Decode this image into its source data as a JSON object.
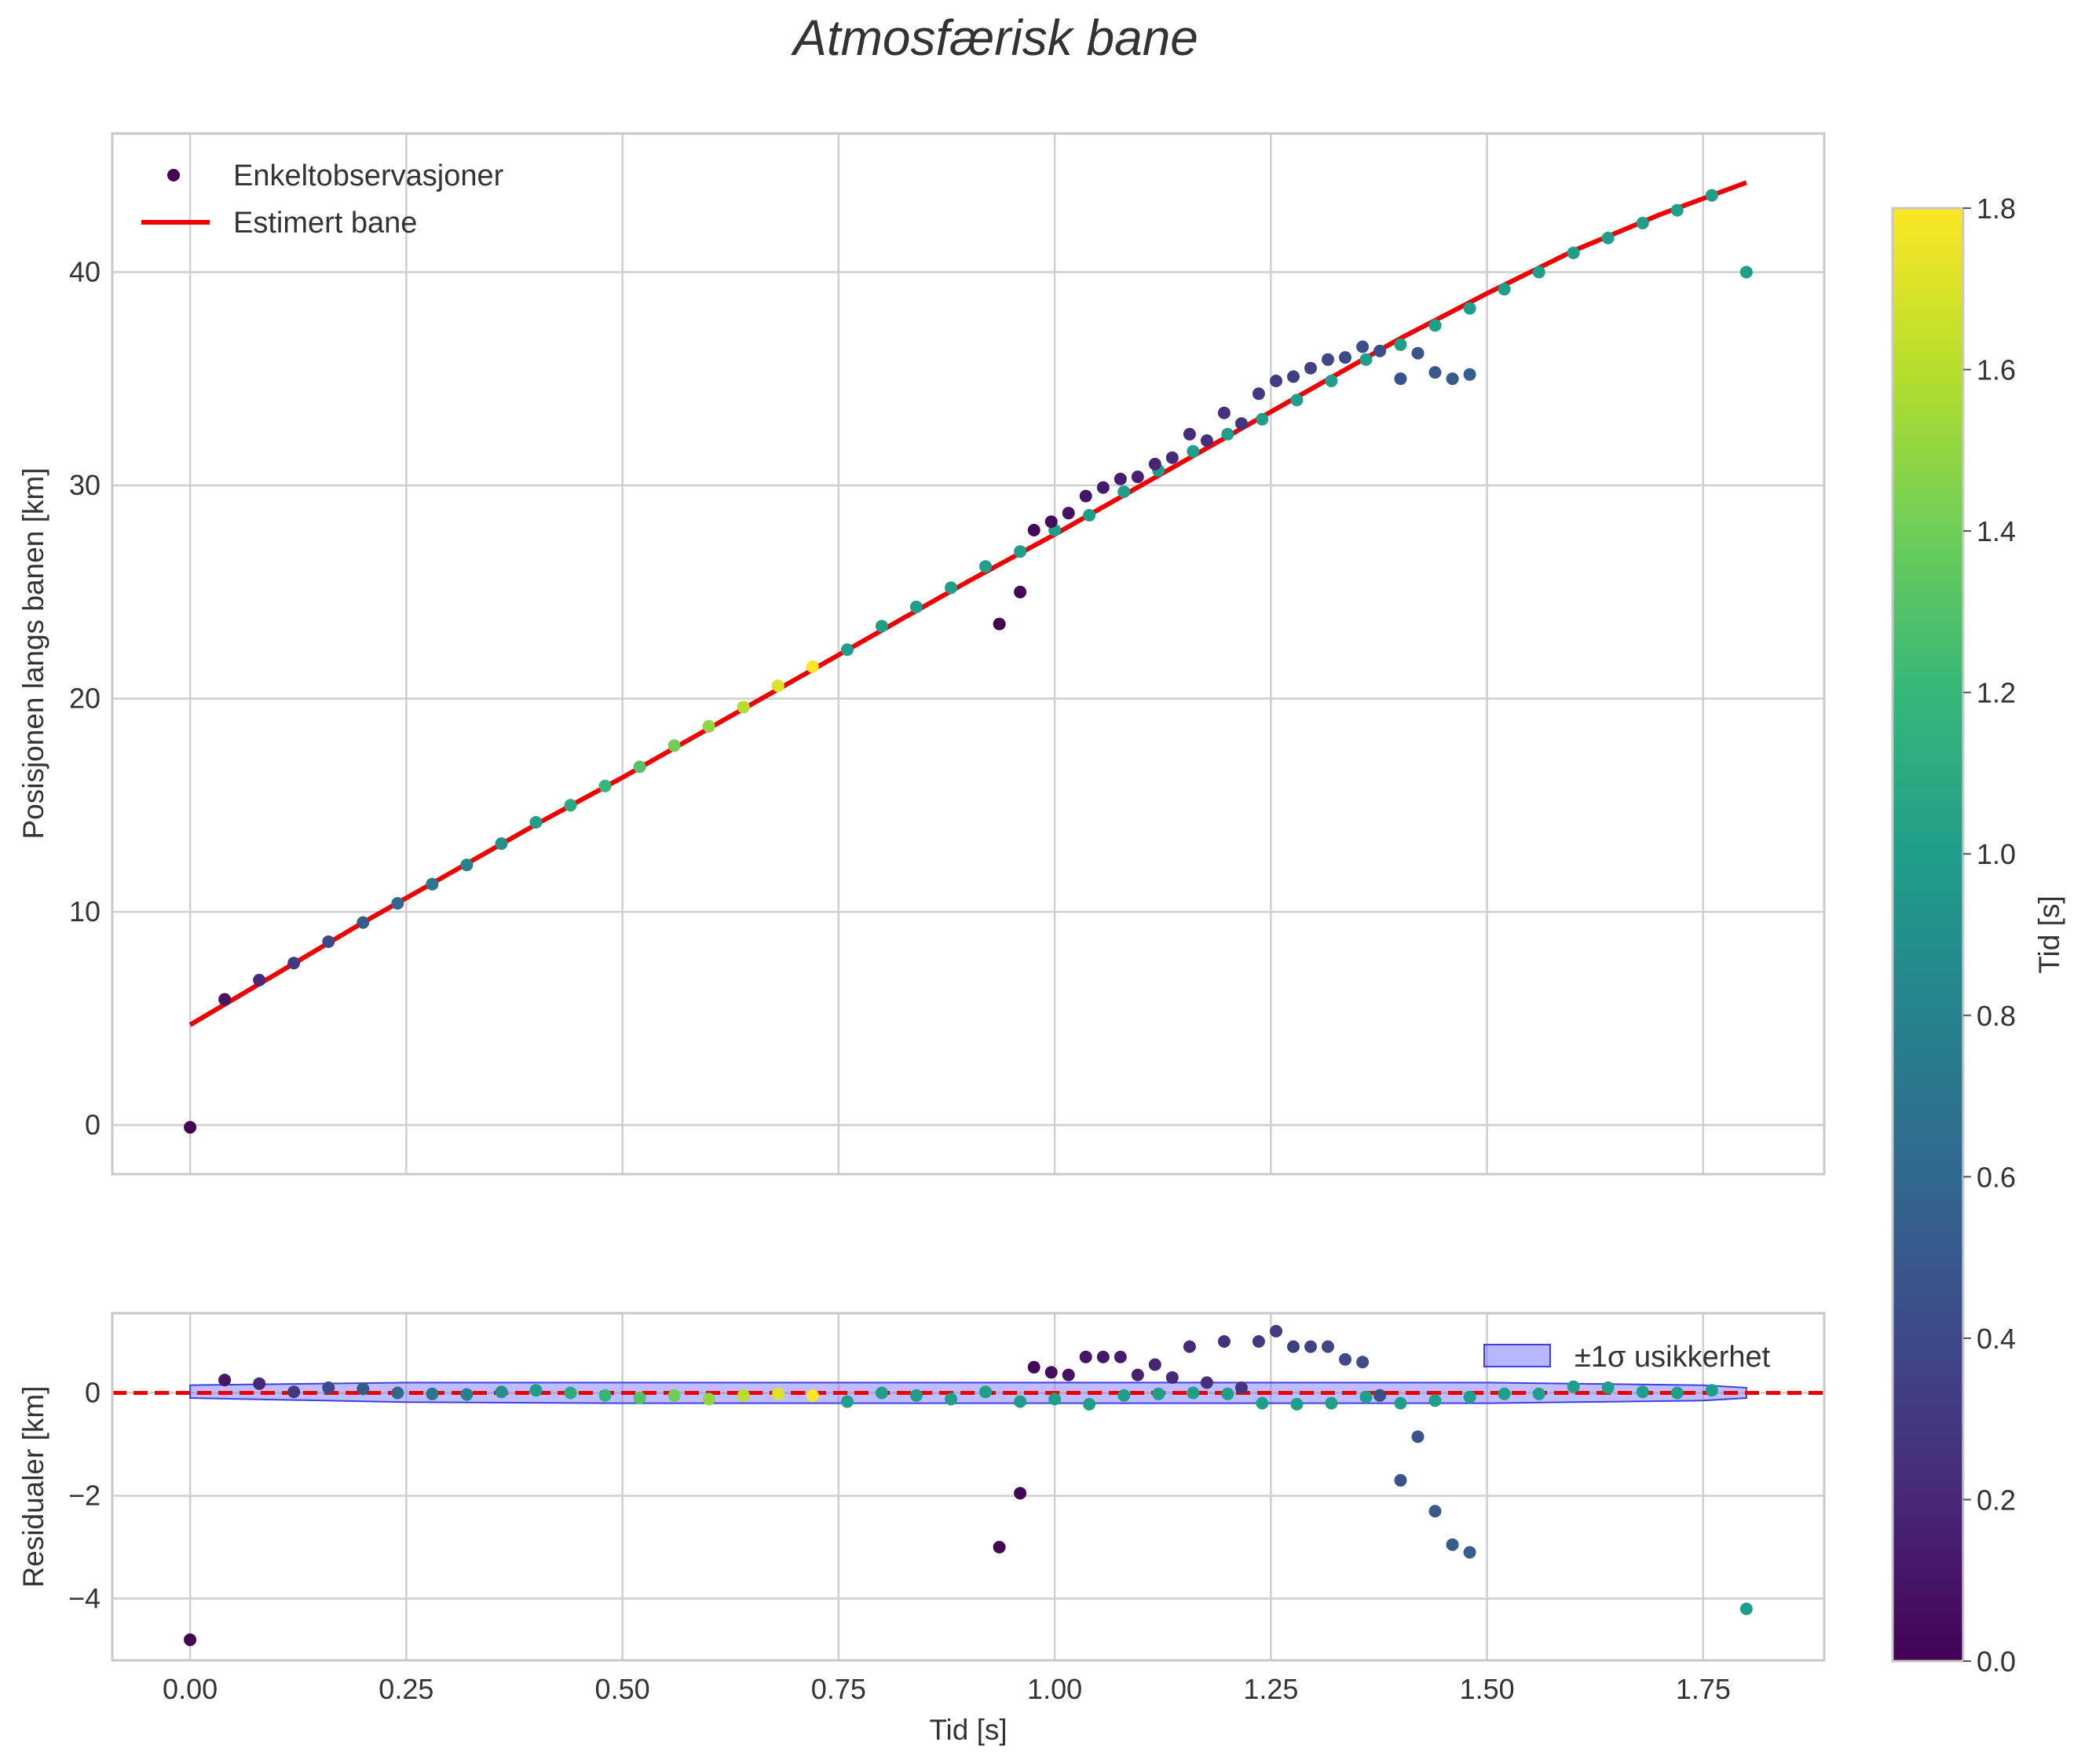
{
  "chart_data": {
    "title": "Atmosfærisk bane",
    "colorbar": {
      "label": "Tid [s]",
      "range": [
        0.0,
        1.8
      ],
      "ticks": [
        "0.0",
        "0.2",
        "0.4",
        "0.6",
        "0.8",
        "1.0",
        "1.2",
        "1.4",
        "1.6",
        "1.8"
      ],
      "tick_values": [
        0,
        0.2,
        0.4,
        0.6,
        0.8,
        1.0,
        1.2,
        1.4,
        1.6,
        1.8
      ],
      "colormap": "viridis"
    },
    "colors": {
      "fit_line": "#ee0000",
      "band_fill": "#7b7bff",
      "band_edge": "#4040e0"
    },
    "charts": [
      {
        "type": "scatter",
        "ylabel": "Posisjonen langs banen [km]",
        "xlabel": "",
        "xlim": [
          -0.09,
          1.89
        ],
        "ylim": [
          -2.3,
          46.5
        ],
        "yticks": [
          0,
          10,
          20,
          30,
          40
        ],
        "ytick_labels": [
          "0",
          "10",
          "20",
          "30",
          "40"
        ],
        "legend": {
          "placement": "top-left",
          "entries": [
            "Enkeltobservasjoner",
            "Estimert bane"
          ]
        },
        "series": [
          {
            "name": "Enkeltobservasjoner",
            "points": [
              [
                0.0,
                -0.1,
                0.0
              ],
              [
                0.04,
                5.9,
                0.1
              ],
              [
                0.08,
                6.8,
                0.2
              ],
              [
                0.12,
                7.6,
                0.3
              ],
              [
                0.16,
                8.6,
                0.4
              ],
              [
                0.2,
                9.5,
                0.5
              ],
              [
                0.24,
                10.4,
                0.6
              ],
              [
                0.28,
                11.3,
                0.7
              ],
              [
                0.32,
                12.2,
                0.8
              ],
              [
                0.36,
                13.2,
                0.9
              ],
              [
                0.4,
                14.2,
                1.0
              ],
              [
                0.44,
                15.0,
                1.1
              ],
              [
                0.48,
                15.9,
                1.2
              ],
              [
                0.52,
                16.8,
                1.3
              ],
              [
                0.56,
                17.8,
                1.4
              ],
              [
                0.6,
                18.7,
                1.5
              ],
              [
                0.64,
                19.6,
                1.6
              ],
              [
                0.68,
                20.6,
                1.7
              ],
              [
                0.72,
                21.5,
                1.8
              ],
              [
                0.76,
                22.3,
                1.0
              ],
              [
                0.8,
                23.4,
                1.0
              ],
              [
                0.84,
                24.3,
                1.0
              ],
              [
                0.88,
                25.2,
                1.0
              ],
              [
                0.92,
                26.2,
                1.0
              ],
              [
                0.96,
                26.9,
                1.0
              ],
              [
                1.0,
                27.9,
                1.0
              ],
              [
                1.04,
                28.6,
                1.0
              ],
              [
                1.08,
                29.7,
                1.0
              ],
              [
                1.12,
                30.7,
                1.0
              ],
              [
                1.16,
                31.6,
                1.0
              ],
              [
                1.2,
                32.4,
                1.0
              ],
              [
                1.24,
                33.1,
                1.0
              ],
              [
                1.28,
                34.0,
                1.0
              ],
              [
                1.32,
                34.9,
                1.0
              ],
              [
                1.36,
                35.9,
                1.0
              ],
              [
                1.4,
                36.6,
                1.0
              ],
              [
                1.44,
                37.5,
                1.0
              ],
              [
                1.48,
                38.3,
                1.0
              ],
              [
                1.52,
                39.2,
                1.0
              ],
              [
                1.56,
                40.0,
                1.0
              ],
              [
                1.6,
                40.9,
                1.0
              ],
              [
                1.64,
                41.6,
                1.0
              ],
              [
                1.68,
                42.3,
                1.0
              ],
              [
                1.72,
                42.9,
                1.0
              ],
              [
                1.76,
                43.6,
                1.0
              ],
              [
                1.8,
                40.0,
                1.0
              ],
              [
                0.936,
                23.5,
                0.0
              ],
              [
                0.96,
                25.0,
                0.02
              ],
              [
                0.976,
                27.9,
                0.04
              ],
              [
                0.996,
                28.3,
                0.06
              ],
              [
                1.016,
                28.7,
                0.08
              ],
              [
                1.036,
                29.5,
                0.1
              ],
              [
                1.056,
                29.9,
                0.12
              ],
              [
                1.076,
                30.3,
                0.14
              ],
              [
                1.096,
                30.4,
                0.16
              ],
              [
                1.116,
                31.0,
                0.18
              ],
              [
                1.136,
                31.3,
                0.2
              ],
              [
                1.156,
                32.4,
                0.22
              ],
              [
                1.176,
                32.1,
                0.24
              ],
              [
                1.196,
                33.4,
                0.26
              ],
              [
                1.216,
                32.9,
                0.28
              ],
              [
                1.236,
                34.3,
                0.3
              ],
              [
                1.256,
                34.9,
                0.32
              ],
              [
                1.276,
                35.1,
                0.34
              ],
              [
                1.296,
                35.5,
                0.36
              ],
              [
                1.316,
                35.9,
                0.38
              ],
              [
                1.336,
                36.0,
                0.4
              ],
              [
                1.356,
                36.5,
                0.42
              ],
              [
                1.376,
                36.3,
                0.44
              ],
              [
                1.4,
                35.0,
                0.46
              ],
              [
                1.42,
                36.2,
                0.48
              ],
              [
                1.44,
                35.3,
                0.5
              ],
              [
                1.46,
                35.0,
                0.52
              ],
              [
                1.48,
                35.2,
                0.54
              ]
            ]
          },
          {
            "name": "Estimert bane",
            "type": "line",
            "x": [
              0.0,
              0.1,
              0.2,
              0.3,
              0.4,
              0.5,
              0.6,
              0.7,
              0.8,
              0.9,
              1.0,
              1.1,
              1.2,
              1.3,
              1.4,
              1.5,
              1.6,
              1.7,
              1.8
            ],
            "y": [
              4.7,
              7.1,
              9.5,
              11.8,
              14.1,
              16.3,
              18.6,
              20.9,
              23.2,
              25.5,
              27.7,
              30.0,
              32.3,
              34.6,
              36.9,
              39.0,
              41.0,
              42.7,
              44.2
            ]
          }
        ]
      },
      {
        "type": "scatter",
        "ylabel": "Residualer [km]",
        "xlabel": "Tid [s]",
        "xlim": [
          -0.09,
          1.89
        ],
        "ylim": [
          -5.2,
          1.55
        ],
        "xticks": [
          0.0,
          0.25,
          0.5,
          0.75,
          1.0,
          1.25,
          1.5,
          1.75
        ],
        "xtick_labels": [
          "0.00",
          "0.25",
          "0.50",
          "0.75",
          "1.00",
          "1.25",
          "1.50",
          "1.75"
        ],
        "yticks": [
          -4,
          -2,
          0
        ],
        "ytick_labels": [
          "−4",
          "−2",
          "0"
        ],
        "reference_line": 0,
        "legend": {
          "placement": "top-right",
          "entries": [
            "±1σ usikkerhet"
          ]
        },
        "band": {
          "name": "±1σ usikkerhet",
          "x": [
            0.0,
            0.25,
            0.5,
            0.75,
            1.0,
            1.25,
            1.5,
            1.75,
            1.8
          ],
          "lower": [
            -0.1,
            -0.18,
            -0.2,
            -0.2,
            -0.2,
            -0.2,
            -0.2,
            -0.15,
            -0.1
          ],
          "upper": [
            0.15,
            0.2,
            0.2,
            0.2,
            0.2,
            0.2,
            0.2,
            0.15,
            0.1
          ]
        },
        "series": [
          {
            "name": "Residualer",
            "points": [
              [
                0.0,
                -4.8,
                0.0
              ],
              [
                0.04,
                0.25,
                0.1
              ],
              [
                0.08,
                0.18,
                0.2
              ],
              [
                0.12,
                0.02,
                0.3
              ],
              [
                0.16,
                0.1,
                0.4
              ],
              [
                0.2,
                0.08,
                0.5
              ],
              [
                0.24,
                0.0,
                0.6
              ],
              [
                0.28,
                -0.02,
                0.7
              ],
              [
                0.32,
                -0.03,
                0.8
              ],
              [
                0.36,
                0.02,
                0.9
              ],
              [
                0.4,
                0.05,
                1.0
              ],
              [
                0.44,
                0.0,
                1.1
              ],
              [
                0.48,
                -0.05,
                1.2
              ],
              [
                0.52,
                -0.1,
                1.3
              ],
              [
                0.56,
                -0.05,
                1.4
              ],
              [
                0.6,
                -0.12,
                1.5
              ],
              [
                0.64,
                -0.05,
                1.6
              ],
              [
                0.68,
                -0.02,
                1.7
              ],
              [
                0.72,
                -0.05,
                1.8
              ],
              [
                0.76,
                -0.17,
                1.0
              ],
              [
                0.8,
                0.0,
                1.0
              ],
              [
                0.84,
                -0.05,
                1.0
              ],
              [
                0.88,
                -0.12,
                1.0
              ],
              [
                0.92,
                0.02,
                1.0
              ],
              [
                0.96,
                -0.17,
                1.0
              ],
              [
                1.0,
                -0.12,
                1.0
              ],
              [
                1.04,
                -0.22,
                1.0
              ],
              [
                1.08,
                -0.05,
                1.0
              ],
              [
                1.12,
                -0.02,
                1.0
              ],
              [
                1.16,
                0.0,
                1.0
              ],
              [
                1.2,
                -0.02,
                1.0
              ],
              [
                1.24,
                -0.2,
                1.0
              ],
              [
                1.28,
                -0.22,
                1.0
              ],
              [
                1.32,
                -0.2,
                1.0
              ],
              [
                1.36,
                -0.08,
                1.0
              ],
              [
                1.4,
                -0.2,
                1.0
              ],
              [
                1.44,
                -0.15,
                1.0
              ],
              [
                1.48,
                -0.08,
                1.0
              ],
              [
                1.52,
                -0.02,
                1.0
              ],
              [
                1.56,
                -0.02,
                1.0
              ],
              [
                1.6,
                0.12,
                1.0
              ],
              [
                1.64,
                0.1,
                1.0
              ],
              [
                1.68,
                0.02,
                1.0
              ],
              [
                1.72,
                0.0,
                1.0
              ],
              [
                1.76,
                0.05,
                1.0
              ],
              [
                1.8,
                -4.2,
                1.0
              ],
              [
                0.936,
                -3.0,
                0.0
              ],
              [
                0.96,
                -1.95,
                0.02
              ],
              [
                0.976,
                0.5,
                0.04
              ],
              [
                0.996,
                0.4,
                0.06
              ],
              [
                1.016,
                0.35,
                0.08
              ],
              [
                1.036,
                0.7,
                0.1
              ],
              [
                1.056,
                0.7,
                0.12
              ],
              [
                1.076,
                0.7,
                0.14
              ],
              [
                1.096,
                0.35,
                0.16
              ],
              [
                1.116,
                0.55,
                0.18
              ],
              [
                1.136,
                0.3,
                0.2
              ],
              [
                1.156,
                0.9,
                0.22
              ],
              [
                1.176,
                0.2,
                0.24
              ],
              [
                1.196,
                1.0,
                0.26
              ],
              [
                1.216,
                0.1,
                0.28
              ],
              [
                1.236,
                1.0,
                0.3
              ],
              [
                1.256,
                1.2,
                0.32
              ],
              [
                1.276,
                0.9,
                0.34
              ],
              [
                1.296,
                0.9,
                0.36
              ],
              [
                1.316,
                0.9,
                0.38
              ],
              [
                1.336,
                0.65,
                0.4
              ],
              [
                1.356,
                0.6,
                0.42
              ],
              [
                1.376,
                -0.05,
                0.44
              ],
              [
                1.4,
                -1.7,
                0.46
              ],
              [
                1.42,
                -0.85,
                0.48
              ],
              [
                1.44,
                -2.3,
                0.5
              ],
              [
                1.46,
                -2.95,
                0.52
              ],
              [
                1.48,
                -3.1,
                0.54
              ]
            ]
          }
        ]
      }
    ]
  }
}
